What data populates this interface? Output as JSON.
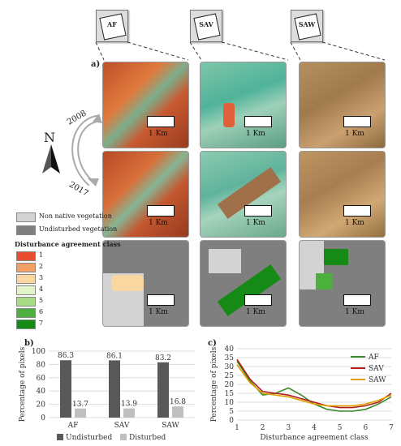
{
  "panels": {
    "a": "a)",
    "b": "b)",
    "c": "c)"
  },
  "sites": [
    "AF",
    "SAV",
    "SAW"
  ],
  "scale_label": "1 Km",
  "north": "N",
  "years": {
    "before": "2008",
    "after": "2017"
  },
  "legend": {
    "non_native": "Non native vegetation",
    "undisturbed": "Undisturbed vegetation",
    "title": "Disturbance agreement class",
    "classes": [
      {
        "label": "1",
        "color": "#e74c2d"
      },
      {
        "label": "2",
        "color": "#f3a066"
      },
      {
        "label": "3",
        "color": "#fad7a0"
      },
      {
        "label": "4",
        "color": "#e2f3c8"
      },
      {
        "label": "5",
        "color": "#a8dc84"
      },
      {
        "label": "6",
        "color": "#4caf3e"
      },
      {
        "label": "7",
        "color": "#168a16"
      }
    ],
    "non_native_color": "#d3d3d3",
    "undisturbed_color": "#7f7f7f"
  },
  "chart_data": [
    {
      "type": "bar",
      "ylabel": "Percentage of pixels",
      "ylim": [
        0,
        100
      ],
      "yticks": [
        0,
        20,
        40,
        60,
        80,
        100
      ],
      "categories": [
        "AF",
        "SAV",
        "SAW"
      ],
      "series": [
        {
          "name": "Undisturbed",
          "values": [
            86.3,
            86.1,
            83.2
          ],
          "labels": [
            "86.3",
            "86.1",
            "83.2"
          ],
          "color": "#595959"
        },
        {
          "name": "Disturbed",
          "values": [
            13.7,
            13.9,
            16.8
          ],
          "labels": [
            "13.7",
            "13.9",
            "16.8"
          ],
          "color": "#bfbfbf"
        }
      ],
      "grid": true,
      "legend": "bottom"
    },
    {
      "type": "line",
      "xlabel": "Disturbance agreement class",
      "ylabel": "Percentage of pixels",
      "xlim": [
        1,
        7
      ],
      "ylim": [
        0,
        40
      ],
      "xticks": [
        1,
        2,
        3,
        4,
        5,
        6,
        7
      ],
      "yticks": [
        0,
        5,
        10,
        15,
        20,
        25,
        30,
        35,
        40
      ],
      "x": [
        1,
        1.5,
        2,
        2.5,
        3,
        3.5,
        4,
        4.5,
        5,
        5.5,
        6,
        6.5,
        7
      ],
      "series": [
        {
          "name": "AF",
          "color": "#3a8a2a",
          "values": [
            33,
            22,
            14,
            15,
            18,
            14,
            9,
            6,
            5,
            5,
            6,
            9,
            13
          ]
        },
        {
          "name": "SAV",
          "color": "#b21d1d",
          "values": [
            34,
            23,
            16,
            15,
            14,
            12,
            10,
            8,
            7,
            7,
            8,
            10,
            15
          ]
        },
        {
          "name": "SAW",
          "color": "#e0a000",
          "values": [
            31,
            21,
            15,
            14,
            13,
            11,
            9,
            8,
            8,
            8,
            9,
            11,
            14
          ]
        }
      ],
      "grid": true,
      "legend": "top-right"
    }
  ]
}
